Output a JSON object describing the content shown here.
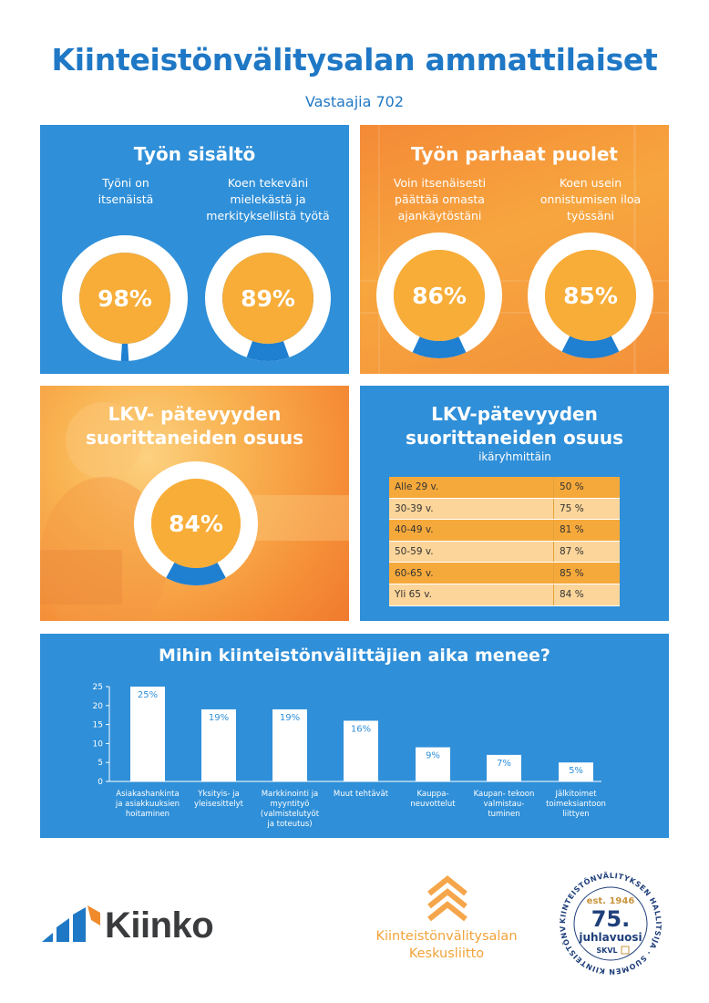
{
  "header": {
    "title": "Kiinteistönvälitysalan ammattilaiset",
    "subtitle": "Vastaajia 702"
  },
  "colors": {
    "brand_blue": "#2f8fd8",
    "title_blue": "#1f78c5",
    "orange": "#f6a93b",
    "donut_fill": "#f7ad38",
    "donut_ring": "#ffffff",
    "donut_remainder": "#1f7fd0"
  },
  "tyon_sisalto": {
    "title": "Työn sisältö",
    "items": [
      {
        "label": "Työni on itsenäistä",
        "value": 98,
        "display": "98%"
      },
      {
        "label": "Koen tekeväni mielekästä ja merkityksellistä työtä",
        "value": 89,
        "display": "89%"
      }
    ]
  },
  "parhaat_puolet": {
    "title": "Työn parhaat puolet",
    "items": [
      {
        "label": "Voin itsenäisesti päättää omasta ajankäytöstäni",
        "value": 86,
        "display": "86%"
      },
      {
        "label": "Koen usein onnistumisen iloa työssäni",
        "value": 85,
        "display": "85%"
      }
    ]
  },
  "lkv_total": {
    "title_line1": "LKV- pätevyyden",
    "title_line2": "suorittaneiden osuus",
    "value": 84,
    "display": "84%"
  },
  "lkv_age": {
    "title_line1": "LKV-pätevyyden",
    "title_line2": "suorittaneiden osuus",
    "subtitle": "ikäryhmittäin",
    "rows": [
      {
        "group": "Alle 29 v.",
        "value": "50 %"
      },
      {
        "group": "30-39 v.",
        "value": "75 %"
      },
      {
        "group": "40-49 v.",
        "value": "81 %"
      },
      {
        "group": "50-59 v.",
        "value": "87 %"
      },
      {
        "group": "60-65 v.",
        "value": "85 %"
      },
      {
        "group": "Yli 65 v.",
        "value": "84 %"
      }
    ]
  },
  "chart_data": {
    "type": "bar",
    "title": "Mihin kiinteistönvälittäjien aika menee?",
    "xlabel": "",
    "ylabel": "",
    "ylim": [
      0,
      25
    ],
    "yticks": [
      "0",
      "5",
      "10",
      "15",
      "20",
      "25"
    ],
    "grid": false,
    "categories": [
      "Asiakashankinta ja asiakkuuksien hoitaminen",
      "Yksityis- ja yleisesittelyt",
      "Markkinointi ja myyntityö (valmistelutyöt ja toteutus)",
      "Muut tehtävät",
      "Kauppa- neuvottelut",
      "Kaupan- tekoon valmistau- tuminen",
      "Jälkitoimet toimeksiantoon liittyen"
    ],
    "values": [
      25,
      19,
      19,
      16,
      9,
      7,
      5
    ],
    "value_labels": [
      "25%",
      "19%",
      "19%",
      "16%",
      "9%",
      "7%",
      "5%"
    ]
  },
  "logos": {
    "kiinko": "Kiinko",
    "kvk_line1": "Kiinteistönvälitysalan",
    "kvk_line2": "Keskusliitto",
    "seal_arc_top": "KIINTEISTÖNVÄLITYKSEN HALLITSIJA · SUOMEN KIINTEISTÖNVÄLITTÄJÄT RY ·",
    "seal_est": "est. 1946",
    "seal_75": "75.",
    "seal_juhlavuosi": "juhlavuosi",
    "seal_skvl": "SKVL"
  }
}
